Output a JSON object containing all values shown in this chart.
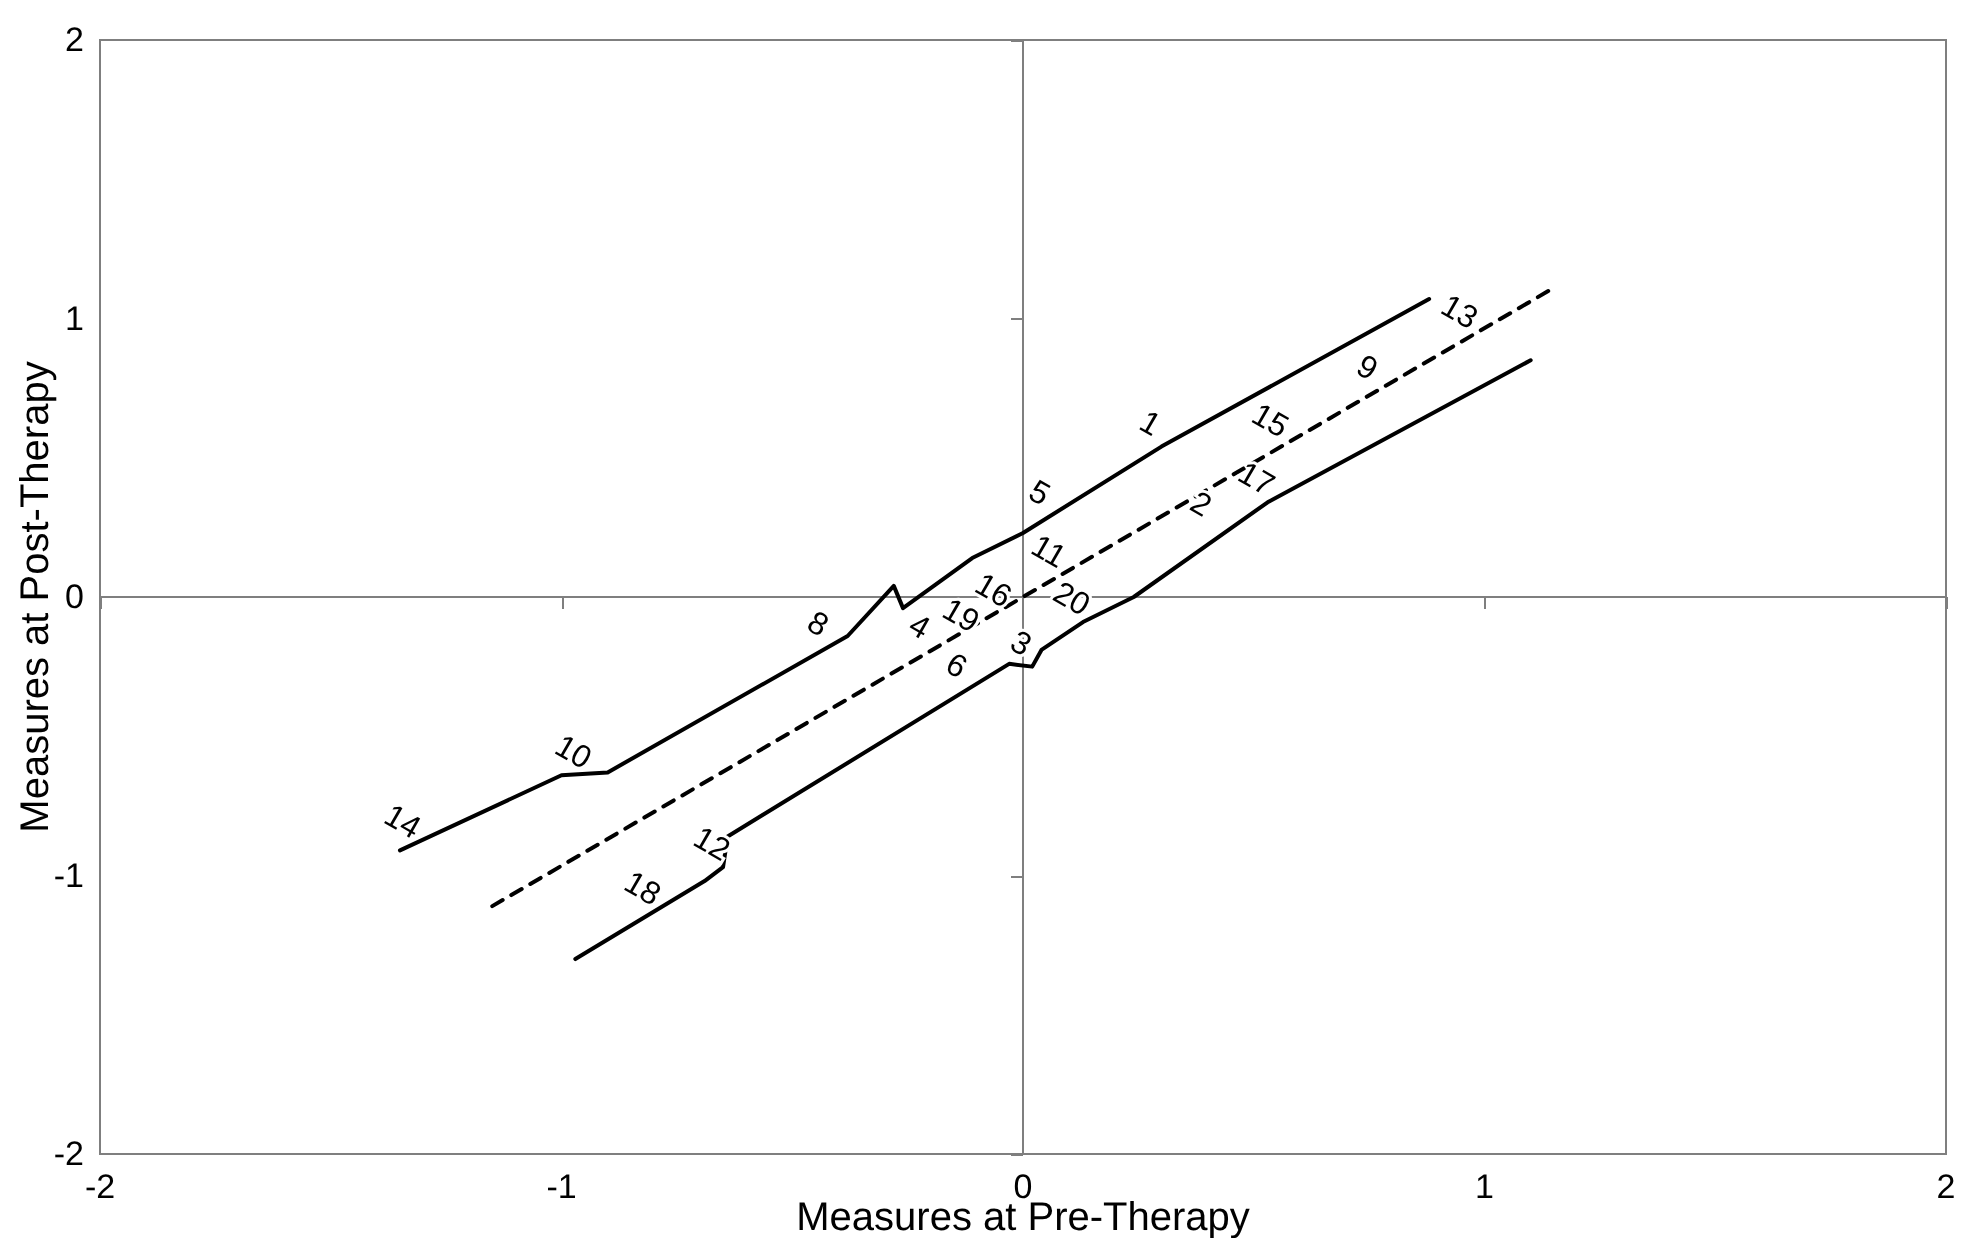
{
  "chart_data": {
    "type": "line",
    "xlabel": "Measures at Pre-Therapy",
    "ylabel": "Measures at Post-Therapy",
    "xlim": [
      -2,
      2
    ],
    "xticks": [
      -2,
      -1,
      0,
      1,
      2
    ],
    "ylim": [
      -2,
      2
    ],
    "yticks": [
      -2,
      -1,
      0,
      1,
      2
    ],
    "marker": "none",
    "series": [
      {
        "line_style": "solid",
        "color": "#000000",
        "x": [
          -1.35,
          -1.0,
          -0.9,
          -0.38,
          -0.28,
          -0.26,
          -0.11,
          0,
          0.3,
          0.88
        ],
        "values": [
          -0.91,
          -0.64,
          -0.63,
          -0.14,
          0.04,
          -0.04,
          0.14,
          0.23,
          0.54,
          1.07
        ]
      },
      {
        "line_style": "dashed",
        "color": "#000000",
        "x": [
          -1.15,
          0,
          1.15
        ],
        "values": [
          -1.11,
          0,
          1.11
        ]
      },
      {
        "line_style": "solid",
        "color": "#000000",
        "x": [
          -0.97,
          -0.69,
          -0.65,
          -0.64,
          -0.03,
          0.02,
          0.04,
          0.13,
          0.24,
          0.53,
          1.1
        ],
        "values": [
          -1.3,
          -1.02,
          -0.97,
          -0.86,
          -0.24,
          -0.25,
          -0.19,
          -0.09,
          0,
          0.34,
          0.85
        ]
      }
    ],
    "annotations": [
      {
        "text": "14",
        "x": -1.32,
        "y": -0.89
      },
      {
        "text": "10",
        "x": -0.95,
        "y": -0.64
      },
      {
        "text": "12",
        "x": -0.65,
        "y": -0.97
      },
      {
        "text": "18",
        "x": -0.8,
        "y": -1.13
      },
      {
        "text": "8",
        "x": -0.42,
        "y": -0.18
      },
      {
        "text": "4",
        "x": -0.2,
        "y": -0.19
      },
      {
        "text": "19",
        "x": -0.11,
        "y": -0.15
      },
      {
        "text": "16",
        "x": -0.04,
        "y": -0.06
      },
      {
        "text": "6",
        "x": -0.12,
        "y": -0.33
      },
      {
        "text": "11",
        "x": 0.08,
        "y": 0.08
      },
      {
        "text": "3",
        "x": 0.02,
        "y": -0.25
      },
      {
        "text": "20",
        "x": 0.13,
        "y": -0.09
      },
      {
        "text": "5",
        "x": 0.06,
        "y": 0.29
      },
      {
        "text": "1",
        "x": 0.3,
        "y": 0.54
      },
      {
        "text": "2",
        "x": 0.41,
        "y": 0.25
      },
      {
        "text": "15",
        "x": 0.56,
        "y": 0.55
      },
      {
        "text": "17",
        "x": 0.53,
        "y": 0.34
      },
      {
        "text": "9",
        "x": 0.77,
        "y": 0.74
      },
      {
        "text": "13",
        "x": 0.97,
        "y": 0.94
      }
    ]
  }
}
